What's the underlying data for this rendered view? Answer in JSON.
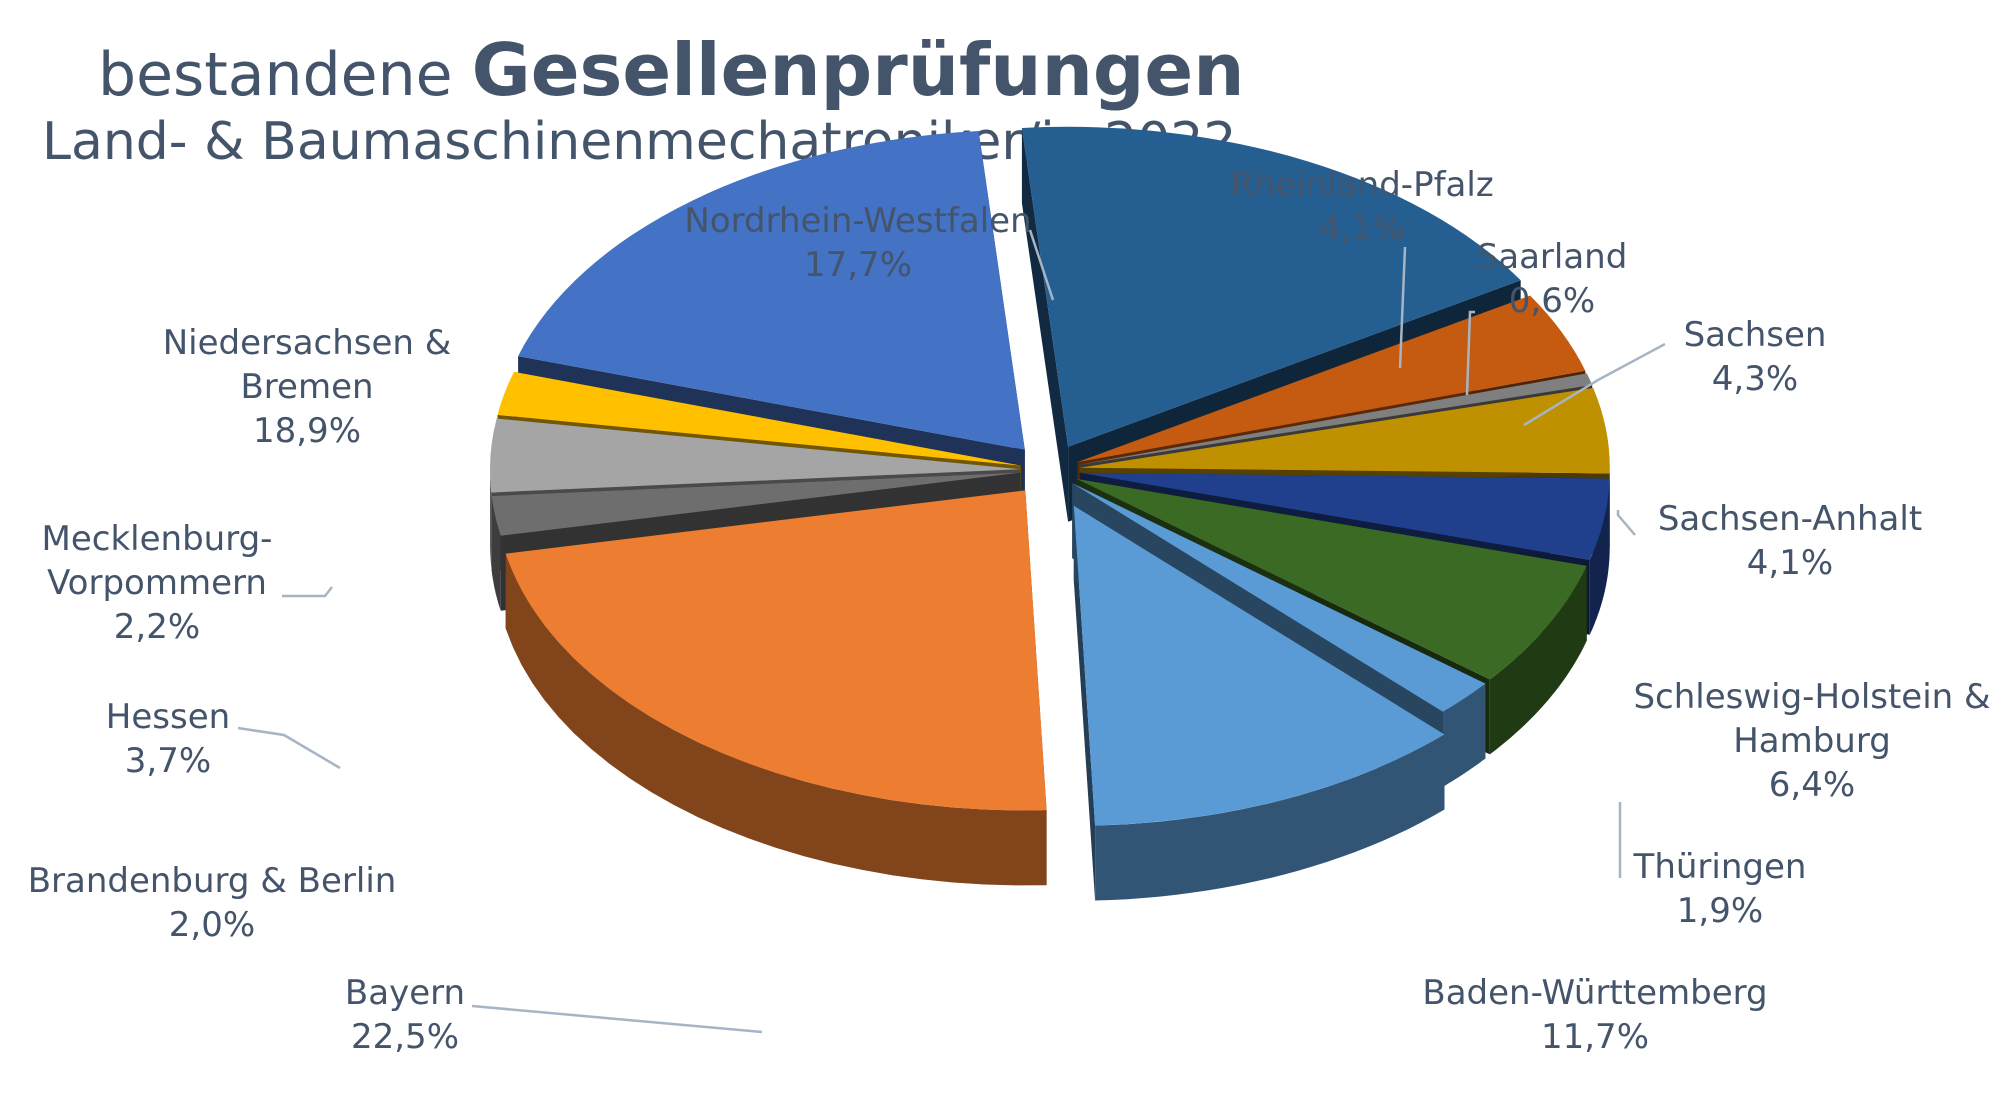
{
  "title": {
    "lead": "bestandene",
    "bold": "Gesellenprüfungen"
  },
  "subtitle": "Land- & Baumaschinenmechatroniker/in 2022",
  "chart_data": {
    "type": "pie",
    "style": "3d-exploded",
    "title": "bestandene Gesellenprüfungen",
    "subtitle": "Land- & Baumaschinenmechatroniker/in 2022",
    "unit": "%",
    "slices": [
      {
        "name": "Nordrhein-Westfalen",
        "value": 17.7,
        "display": "17,7%",
        "color": "#255e91"
      },
      {
        "name": "Rheinland-Pfalz",
        "value": 4.1,
        "display": "4,1%",
        "color": "#c55a11"
      },
      {
        "name": "Saarland",
        "value": 0.6,
        "display": "0,6%",
        "color": "#7f7f7f"
      },
      {
        "name": "Sachsen",
        "value": 4.3,
        "display": "4,3%",
        "color": "#bf9000"
      },
      {
        "name": "Sachsen-Anhalt",
        "value": 4.1,
        "display": "4,1%",
        "color": "#203f8c"
      },
      {
        "name": "Schleswig-Holstein & Hamburg",
        "value": 6.4,
        "display": "6,4%",
        "color": "#3a6a24"
      },
      {
        "name": "Thüringen",
        "value": 1.9,
        "display": "1,9%",
        "color": "#5b9bd5"
      },
      {
        "name": "Baden-Württemberg",
        "value": 11.7,
        "display": "11,7%",
        "color": "#5b9bd5"
      },
      {
        "name": "Bayern",
        "value": 22.5,
        "display": "22,5%",
        "color": "#ed7d31"
      },
      {
        "name": "Brandenburg & Berlin",
        "value": 2.0,
        "display": "2,0%",
        "color": "#6e6e6e"
      },
      {
        "name": "Hessen",
        "value": 3.7,
        "display": "3,7%",
        "color": "#a5a5a5"
      },
      {
        "name": "Mecklenburg-Vorpommern",
        "value": 2.2,
        "display": "2,2%",
        "color": "#ffc000"
      },
      {
        "name": "Niedersachsen & Bremen",
        "value": 18.9,
        "display": "18,9%",
        "color": "#4472c4"
      }
    ],
    "labels": [
      {
        "lines": [
          "Nordrhein-Westfalen"
        ],
        "pct": "17,7%"
      },
      {
        "lines": [
          "Rheinland-Pfalz"
        ],
        "pct": "4,1%"
      },
      {
        "lines": [
          "Saarland"
        ],
        "pct": "0,6%"
      },
      {
        "lines": [
          "Sachsen"
        ],
        "pct": "4,3%"
      },
      {
        "lines": [
          "Sachsen-Anhalt"
        ],
        "pct": "4,1%"
      },
      {
        "lines": [
          "Schleswig-Holstein &",
          "Hamburg"
        ],
        "pct": "6,4%"
      },
      {
        "lines": [
          "Thüringen"
        ],
        "pct": "1,9%"
      },
      {
        "lines": [
          "Baden-Württemberg"
        ],
        "pct": "11,7%"
      },
      {
        "lines": [
          "Bayern"
        ],
        "pct": "22,5%"
      },
      {
        "lines": [
          "Brandenburg & Berlin"
        ],
        "pct": "2,0%"
      },
      {
        "lines": [
          "Hessen"
        ],
        "pct": "3,7%"
      },
      {
        "lines": [
          "Mecklenburg-",
          "Vorpommern"
        ],
        "pct": "2,2%"
      },
      {
        "lines": [
          "Niedersachsen &",
          "Bremen"
        ],
        "pct": "18,9%"
      }
    ]
  }
}
